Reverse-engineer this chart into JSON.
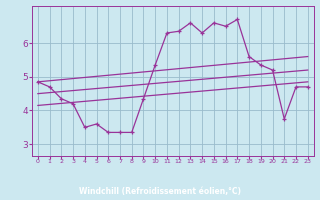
{
  "xlabel": "Windchill (Refroidissement éolien,°C)",
  "bg_color": "#cce8f0",
  "line_color": "#993399",
  "grid_color": "#99bbcc",
  "axis_bg": "#5555aa",
  "xlim": [
    -0.5,
    23.5
  ],
  "ylim": [
    2.65,
    7.1
  ],
  "yticks": [
    3,
    4,
    5,
    6
  ],
  "xticks": [
    0,
    1,
    2,
    3,
    4,
    5,
    6,
    7,
    8,
    9,
    10,
    11,
    12,
    13,
    14,
    15,
    16,
    17,
    18,
    19,
    20,
    21,
    22,
    23
  ],
  "main_line": [
    4.85,
    4.7,
    4.35,
    4.2,
    3.5,
    3.6,
    3.35,
    3.35,
    3.35,
    4.35,
    5.35,
    6.3,
    6.35,
    6.6,
    6.3,
    6.6,
    6.5,
    6.7,
    5.6,
    5.35,
    5.2,
    3.75,
    4.7,
    4.7
  ],
  "upper_line": [
    [
      0,
      4.85
    ],
    [
      23,
      5.6
    ]
  ],
  "mid_line": [
    [
      0,
      4.5
    ],
    [
      23,
      5.2
    ]
  ],
  "lower_line": [
    [
      0,
      4.15
    ],
    [
      23,
      4.85
    ]
  ]
}
